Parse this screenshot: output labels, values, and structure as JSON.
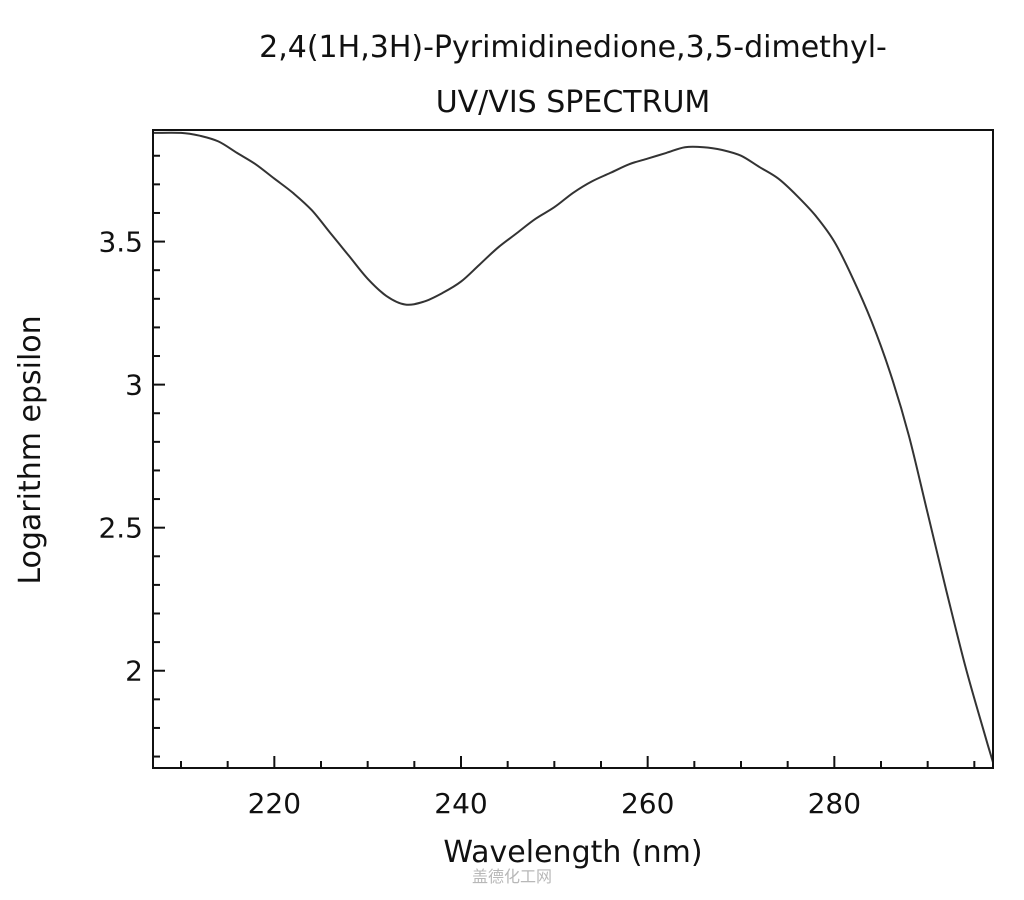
{
  "chart_data": {
    "type": "line",
    "title": "2,4(1H,3H)-Pyrimidinedione,3,5-dimethyl-",
    "subtitle": "UV/VIS SPECTRUM",
    "xlabel": "Wavelength (nm)",
    "ylabel": "Logarithm epsilon",
    "xlim": [
      207,
      297
    ],
    "ylim": [
      1.66,
      3.89
    ],
    "x_ticks": [
      220,
      240,
      260,
      280
    ],
    "x_tick_labels": [
      "220",
      "240",
      "260",
      "280"
    ],
    "y_ticks": [
      2,
      2.5,
      3,
      3.5
    ],
    "y_tick_labels": [
      "2",
      "2.5",
      "3",
      "3.5"
    ],
    "grid": false,
    "legend": "none",
    "series": [
      {
        "x": [
          207,
          210,
          212,
          214,
          216,
          218,
          220,
          222,
          224,
          226,
          228,
          230,
          232,
          234,
          236,
          238,
          240,
          242,
          244,
          246,
          248,
          250,
          252,
          254,
          256,
          258,
          260,
          262,
          264,
          266,
          268,
          270,
          272,
          274,
          276,
          278,
          280,
          282,
          284,
          286,
          288,
          290,
          292,
          294,
          296,
          297
        ],
        "y": [
          3.88,
          3.88,
          3.87,
          3.85,
          3.81,
          3.77,
          3.72,
          3.67,
          3.61,
          3.53,
          3.45,
          3.37,
          3.31,
          3.28,
          3.29,
          3.32,
          3.36,
          3.42,
          3.48,
          3.53,
          3.58,
          3.62,
          3.67,
          3.71,
          3.74,
          3.77,
          3.79,
          3.81,
          3.83,
          3.83,
          3.82,
          3.8,
          3.76,
          3.72,
          3.66,
          3.59,
          3.5,
          3.37,
          3.22,
          3.04,
          2.82,
          2.55,
          2.28,
          2.02,
          1.79,
          1.68
        ],
        "color": "#333333"
      }
    ]
  },
  "watermark": "盖德化工网"
}
